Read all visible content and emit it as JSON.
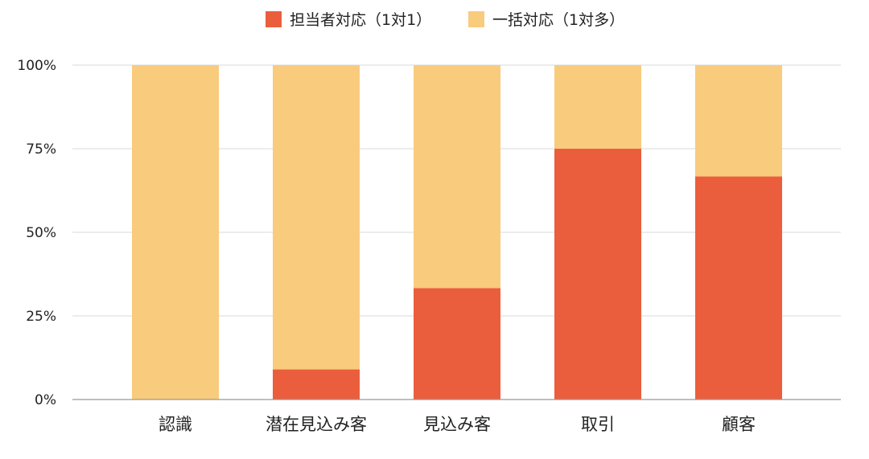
{
  "chart_data": {
    "type": "bar",
    "stacked": true,
    "percent_stacked": true,
    "categories": [
      "認識",
      "潜在見込み客",
      "見込み客",
      "取引",
      "顧客"
    ],
    "series": [
      {
        "name": "担当者対応（1対1）",
        "color": "#EB5E3D",
        "values": [
          0,
          9,
          33.3,
          75,
          66.7
        ]
      },
      {
        "name": "一括対応（1対多）",
        "color": "#F9CB7D",
        "values": [
          100,
          91,
          66.7,
          25,
          33.3
        ]
      }
    ],
    "ylim": [
      0,
      100
    ],
    "yticks": [
      0,
      25,
      50,
      75,
      100
    ],
    "ytick_labels": [
      "0%",
      "25%",
      "50%",
      "75%",
      "100%"
    ],
    "xlabel": "",
    "ylabel": "",
    "grid": true,
    "legend_position": "top-center"
  }
}
